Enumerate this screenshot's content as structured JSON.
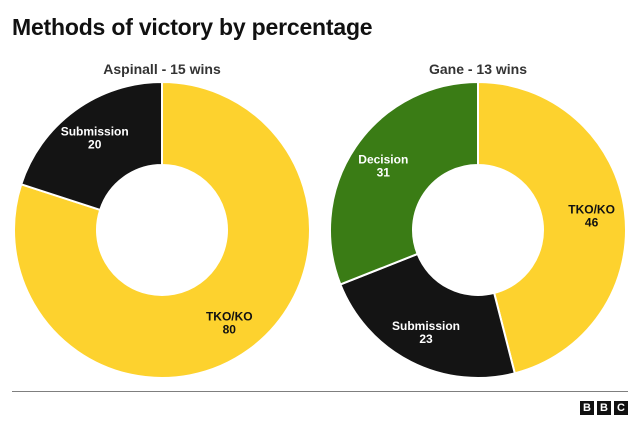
{
  "page_title": "Methods of victory by percentage",
  "colors": {
    "tko_ko": "#fdd22e",
    "submission": "#141414",
    "decision": "#3a7c15",
    "label_dark": "#111111",
    "label_light": "#ffffff"
  },
  "chart_data": [
    {
      "type": "pie",
      "subtitle": "Aspinall - 15 wins",
      "donut": true,
      "slices": [
        {
          "label": "TKO/KO",
          "value": 80,
          "color": "#fdd22e",
          "text_color": "#111111"
        },
        {
          "label": "Submission",
          "value": 20,
          "color": "#141414",
          "text_color": "#ffffff"
        }
      ]
    },
    {
      "type": "pie",
      "subtitle": "Gane - 13 wins",
      "donut": true,
      "slices": [
        {
          "label": "TKO/KO",
          "value": 46,
          "color": "#fdd22e",
          "text_color": "#111111"
        },
        {
          "label": "Submission",
          "value": 23,
          "color": "#141414",
          "text_color": "#ffffff"
        },
        {
          "label": "Decision",
          "value": 31,
          "color": "#3a7c15",
          "text_color": "#ffffff"
        }
      ]
    }
  ],
  "logo": {
    "letters": [
      "B",
      "B",
      "C"
    ]
  }
}
